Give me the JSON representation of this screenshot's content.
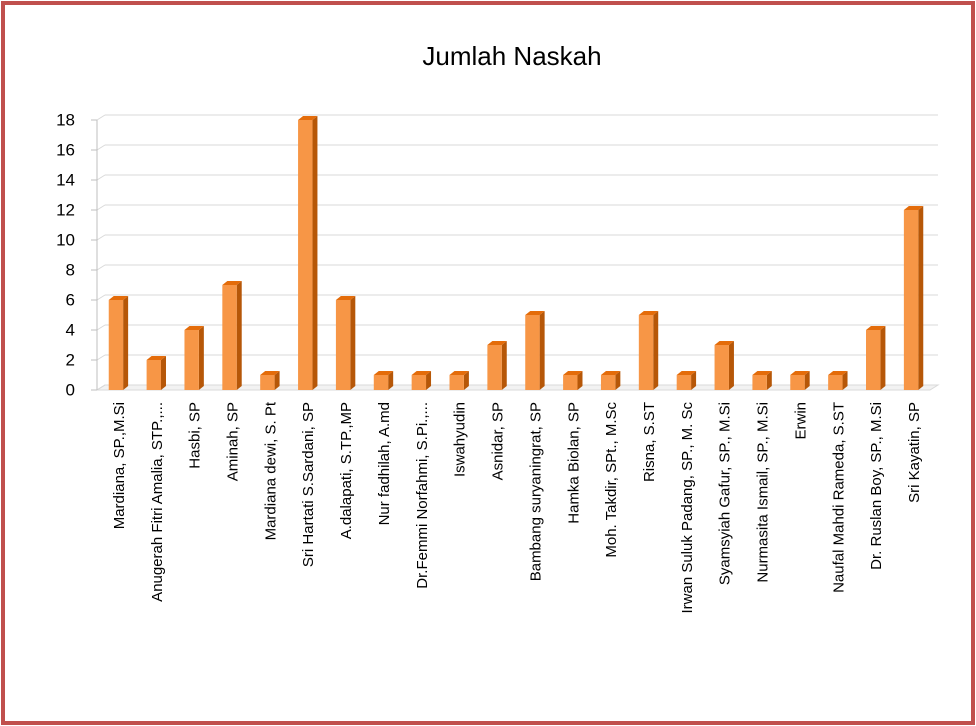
{
  "chart_data": {
    "type": "bar3d",
    "title": "Jumlah Naskah",
    "categories": [
      "Mardiana, SP.,M.Si",
      "Anugerah Fitri Amalia, STP.,...",
      "Hasbi, SP",
      "Aminah, SP",
      "Mardiana dewi, S. Pt",
      "Sri Hartati S.Sardani, SP",
      "A.dalapati, S.TP.,MP",
      "Nur fadhilah, A.md",
      "Dr.Femmi Norfahmi, S.Pi.,...",
      "Iswahyudin",
      "Asnidar, SP",
      "Bambang suryaningrat, SP",
      "Hamka Biolan, SP",
      "Moh. Takdir, SPt., M.Sc",
      "Risna, S.ST",
      "Irwan Suluk Padang, SP., M. Sc",
      "Syamsyiah Gafur, SP., M.Si",
      "Nurmasita Ismail, SP., M.Si",
      "Erwin",
      "Naufal Mahdi Rameda, S.ST",
      "Dr. Ruslan Boy, SP., M.Si",
      "Sri Kayatin, SP"
    ],
    "values": [
      6,
      2,
      4,
      7,
      1,
      18,
      6,
      1,
      1,
      1,
      3,
      5,
      1,
      1,
      5,
      1,
      3,
      1,
      1,
      1,
      4,
      12
    ],
    "color": "#f79646",
    "ylim": [
      0,
      18
    ],
    "yticks": [
      0,
      2,
      4,
      6,
      8,
      10,
      12,
      14,
      16,
      18
    ],
    "grid": true
  }
}
